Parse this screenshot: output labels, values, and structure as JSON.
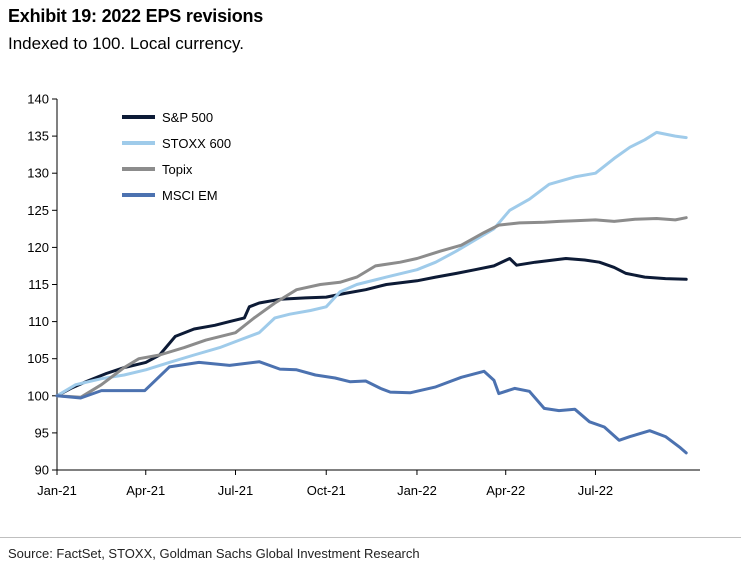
{
  "title": "Exhibit 19: 2022 EPS revisions",
  "subtitle": "Indexed to 100. Local currency.",
  "source": "Source: FactSet, STOXX, Goldman Sachs Global Investment Research",
  "chart_data": {
    "type": "line",
    "ylim": [
      90,
      140
    ],
    "yticks": [
      90,
      95,
      100,
      105,
      110,
      115,
      120,
      125,
      130,
      135,
      140
    ],
    "xlim": [
      "2021-01-01",
      "2022-10-15"
    ],
    "xticks": [
      {
        "date": "2021-01-01",
        "label": "Jan-21"
      },
      {
        "date": "2021-04-01",
        "label": "Apr-21"
      },
      {
        "date": "2021-07-01",
        "label": "Jul-21"
      },
      {
        "date": "2021-10-01",
        "label": "Oct-21"
      },
      {
        "date": "2022-01-01",
        "label": "Jan-22"
      },
      {
        "date": "2022-04-01",
        "label": "Apr-22"
      },
      {
        "date": "2022-07-01",
        "label": "Jul-22"
      }
    ],
    "legend_position": "top-left",
    "series": [
      {
        "name": "S&P 500",
        "color": "#0d1b36",
        "points": [
          [
            "2021-01-01",
            100
          ],
          [
            "2021-01-15",
            101
          ],
          [
            "2021-02-01",
            102
          ],
          [
            "2021-02-20",
            103
          ],
          [
            "2021-03-10",
            103.8
          ],
          [
            "2021-04-01",
            104.5
          ],
          [
            "2021-04-15",
            105.5
          ],
          [
            "2021-05-01",
            108
          ],
          [
            "2021-05-20",
            109
          ],
          [
            "2021-06-10",
            109.5
          ],
          [
            "2021-06-25",
            110
          ],
          [
            "2021-07-10",
            110.5
          ],
          [
            "2021-07-15",
            112
          ],
          [
            "2021-07-25",
            112.5
          ],
          [
            "2021-08-15",
            113
          ],
          [
            "2021-09-10",
            113.2
          ],
          [
            "2021-10-01",
            113.3
          ],
          [
            "2021-10-20",
            113.8
          ],
          [
            "2021-11-10",
            114.3
          ],
          [
            "2021-12-01",
            115
          ],
          [
            "2022-01-01",
            115.5
          ],
          [
            "2022-01-20",
            116
          ],
          [
            "2022-02-10",
            116.5
          ],
          [
            "2022-03-01",
            117
          ],
          [
            "2022-03-20",
            117.5
          ],
          [
            "2022-04-05",
            118.5
          ],
          [
            "2022-04-12",
            117.6
          ],
          [
            "2022-05-01",
            118
          ],
          [
            "2022-06-01",
            118.5
          ],
          [
            "2022-06-20",
            118.3
          ],
          [
            "2022-07-05",
            118
          ],
          [
            "2022-07-20",
            117.3
          ],
          [
            "2022-08-01",
            116.5
          ],
          [
            "2022-08-20",
            116
          ],
          [
            "2022-09-10",
            115.8
          ],
          [
            "2022-10-01",
            115.7
          ]
        ]
      },
      {
        "name": "STOXX 600",
        "color": "#9fcbea",
        "points": [
          [
            "2021-01-01",
            100
          ],
          [
            "2021-01-20",
            101.5
          ],
          [
            "2021-02-15",
            102.3
          ],
          [
            "2021-03-10",
            102.8
          ],
          [
            "2021-04-01",
            103.5
          ],
          [
            "2021-04-25",
            104.5
          ],
          [
            "2021-05-20",
            105.5
          ],
          [
            "2021-06-15",
            106.5
          ],
          [
            "2021-07-05",
            107.5
          ],
          [
            "2021-07-25",
            108.5
          ],
          [
            "2021-08-10",
            110.5
          ],
          [
            "2021-08-25",
            111
          ],
          [
            "2021-09-15",
            111.5
          ],
          [
            "2021-10-01",
            112
          ],
          [
            "2021-10-15",
            114
          ],
          [
            "2021-11-01",
            115
          ],
          [
            "2021-12-01",
            116
          ],
          [
            "2022-01-01",
            117
          ],
          [
            "2022-01-20",
            118
          ],
          [
            "2022-02-10",
            119.5
          ],
          [
            "2022-03-01",
            121
          ],
          [
            "2022-03-20",
            122.5
          ],
          [
            "2022-04-05",
            125
          ],
          [
            "2022-04-25",
            126.5
          ],
          [
            "2022-05-15",
            128.5
          ],
          [
            "2022-06-10",
            129.5
          ],
          [
            "2022-07-01",
            130
          ],
          [
            "2022-07-20",
            132
          ],
          [
            "2022-08-05",
            133.5
          ],
          [
            "2022-08-20",
            134.5
          ],
          [
            "2022-09-01",
            135.5
          ],
          [
            "2022-09-20",
            135
          ],
          [
            "2022-10-01",
            134.8
          ]
        ]
      },
      {
        "name": "Topix",
        "color": "#8c8c8c",
        "points": [
          [
            "2021-01-01",
            100
          ],
          [
            "2021-01-25",
            99.8
          ],
          [
            "2021-02-15",
            101.5
          ],
          [
            "2021-03-10",
            103.8
          ],
          [
            "2021-03-25",
            105
          ],
          [
            "2021-04-15",
            105.5
          ],
          [
            "2021-05-10",
            106.5
          ],
          [
            "2021-06-01",
            107.5
          ],
          [
            "2021-07-01",
            108.5
          ],
          [
            "2021-07-20",
            110.5
          ],
          [
            "2021-08-10",
            112.5
          ],
          [
            "2021-09-01",
            114.3
          ],
          [
            "2021-09-25",
            115
          ],
          [
            "2021-10-15",
            115.3
          ],
          [
            "2021-11-01",
            116
          ],
          [
            "2021-11-20",
            117.5
          ],
          [
            "2021-12-15",
            118
          ],
          [
            "2022-01-01",
            118.5
          ],
          [
            "2022-01-25",
            119.5
          ],
          [
            "2022-02-15",
            120.3
          ],
          [
            "2022-03-10",
            122
          ],
          [
            "2022-03-25",
            123
          ],
          [
            "2022-04-15",
            123.3
          ],
          [
            "2022-05-10",
            123.4
          ],
          [
            "2022-05-25",
            123.5
          ],
          [
            "2022-06-10",
            123.6
          ],
          [
            "2022-07-01",
            123.7
          ],
          [
            "2022-07-20",
            123.5
          ],
          [
            "2022-08-10",
            123.8
          ],
          [
            "2022-09-01",
            123.9
          ],
          [
            "2022-09-20",
            123.7
          ],
          [
            "2022-10-01",
            124
          ]
        ]
      },
      {
        "name": "MSCI EM",
        "color": "#4c72b0",
        "points": [
          [
            "2021-01-01",
            100
          ],
          [
            "2021-01-25",
            99.7
          ],
          [
            "2021-02-15",
            100.7
          ],
          [
            "2021-03-31",
            100.7
          ],
          [
            "2021-04-25",
            103.9
          ],
          [
            "2021-05-25",
            104.5
          ],
          [
            "2021-06-25",
            104.1
          ],
          [
            "2021-07-25",
            104.6
          ],
          [
            "2021-08-15",
            103.6
          ],
          [
            "2021-09-01",
            103.5
          ],
          [
            "2021-09-20",
            102.8
          ],
          [
            "2021-10-10",
            102.4
          ],
          [
            "2021-10-25",
            101.9
          ],
          [
            "2021-11-10",
            102
          ],
          [
            "2021-11-25",
            101
          ],
          [
            "2021-12-05",
            100.5
          ],
          [
            "2021-12-25",
            100.4
          ],
          [
            "2022-01-20",
            101.2
          ],
          [
            "2022-02-15",
            102.5
          ],
          [
            "2022-03-10",
            103.3
          ],
          [
            "2022-03-20",
            102.1
          ],
          [
            "2022-03-25",
            100.3
          ],
          [
            "2022-04-10",
            101
          ],
          [
            "2022-04-25",
            100.6
          ],
          [
            "2022-05-10",
            98.3
          ],
          [
            "2022-05-25",
            98
          ],
          [
            "2022-06-10",
            98.2
          ],
          [
            "2022-06-25",
            96.5
          ],
          [
            "2022-07-10",
            95.8
          ],
          [
            "2022-07-25",
            94
          ],
          [
            "2022-08-05",
            94.5
          ],
          [
            "2022-08-25",
            95.3
          ],
          [
            "2022-09-10",
            94.5
          ],
          [
            "2022-09-25",
            93
          ],
          [
            "2022-10-01",
            92.3
          ]
        ]
      }
    ]
  }
}
